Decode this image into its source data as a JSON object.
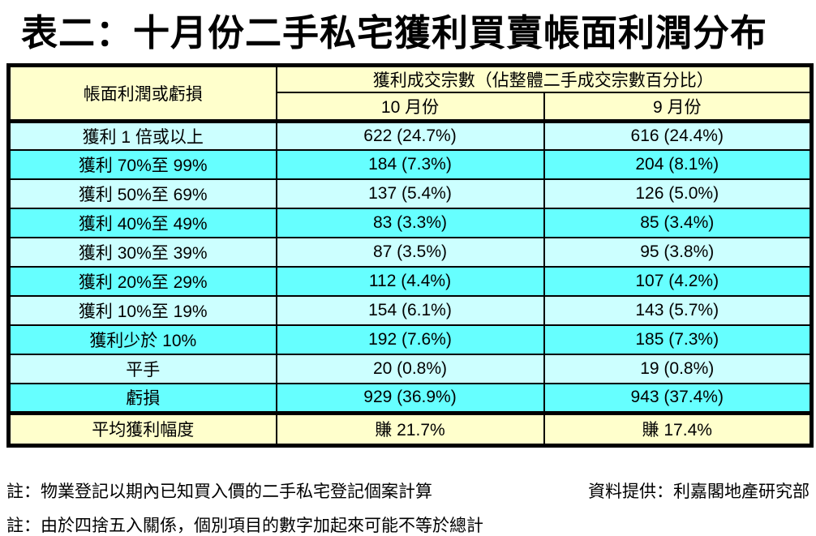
{
  "title": "表二：十月份二手私宅獲利買賣帳面利潤分布",
  "table": {
    "header": {
      "row_label_col": "帳面利潤或虧損",
      "group_label": "獲利成交宗數（佔整體二手成交宗數百分比）",
      "month_oct": "10 月份",
      "month_sep": "9 月份"
    },
    "rows": [
      {
        "label": "獲利 1 倍或以上",
        "oct": "622 (24.7%)",
        "sep": "616 (24.4%)"
      },
      {
        "label": "獲利 70%至 99%",
        "oct": "184 (7.3%)",
        "sep": "204 (8.1%)"
      },
      {
        "label": "獲利 50%至 69%",
        "oct": "137 (5.4%)",
        "sep": "126 (5.0%)"
      },
      {
        "label": "獲利 40%至 49%",
        "oct": "83 (3.3%)",
        "sep": "85 (3.4%)"
      },
      {
        "label": "獲利 30%至 39%",
        "oct": "87 (3.5%)",
        "sep": "95 (3.8%)"
      },
      {
        "label": "獲利 20%至 29%",
        "oct": "112 (4.4%)",
        "sep": "107 (4.2%)"
      },
      {
        "label": "獲利 10%至 19%",
        "oct": "154 (6.1%)",
        "sep": "143 (5.7%)"
      },
      {
        "label": "獲利少於 10%",
        "oct": "192 (7.6%)",
        "sep": "185 (7.3%)"
      },
      {
        "label": "平手",
        "oct": "20 (0.8%)",
        "sep": "19 (0.8%)"
      },
      {
        "label": "虧損",
        "oct": "929 (36.9%)",
        "sep": "943 (37.4%)"
      }
    ],
    "summary": {
      "label": "平均獲利幅度",
      "oct": "賺 21.7%",
      "sep": "賺 17.4%"
    }
  },
  "notes": {
    "note1": "註：物業登記以期內已知買入價的二手私宅登記個案計算",
    "source": "資料提供：利嘉閣地產研究部",
    "note2": "註：由於四捨五入關係，個別項目的數字加起來可能不等於總計"
  },
  "colors": {
    "header_bg": "#FFFFCC",
    "row_light_bg": "#CCFFFF",
    "row_bright_bg": "#66FFFF",
    "summary_bg": "#FFFFCC",
    "border": "#000000",
    "text": "#000000"
  },
  "chart_data": {
    "type": "table",
    "title": "表二：十月份二手私宅獲利買賣帳面利潤分布",
    "column_group": "獲利成交宗數（佔整體二手成交宗數百分比）",
    "columns": [
      "帳面利潤或虧損",
      "10 月份",
      "9 月份"
    ],
    "categories": [
      "獲利 1 倍或以上",
      "獲利 70%至 99%",
      "獲利 50%至 69%",
      "獲利 40%至 49%",
      "獲利 30%至 39%",
      "獲利 20%至 29%",
      "獲利 10%至 19%",
      "獲利少於 10%",
      "平手",
      "虧損"
    ],
    "series": [
      {
        "name": "10 月份 宗數",
        "values": [
          622,
          184,
          137,
          83,
          87,
          112,
          154,
          192,
          20,
          929
        ]
      },
      {
        "name": "10 月份 百分比",
        "values": [
          24.7,
          7.3,
          5.4,
          3.3,
          3.5,
          4.4,
          6.1,
          7.6,
          0.8,
          36.9
        ]
      },
      {
        "name": "9 月份 宗數",
        "values": [
          616,
          204,
          126,
          85,
          95,
          107,
          143,
          185,
          19,
          943
        ]
      },
      {
        "name": "9 月份 百分比",
        "values": [
          24.4,
          8.1,
          5.0,
          3.4,
          3.8,
          4.2,
          5.7,
          7.3,
          0.8,
          37.4
        ]
      }
    ],
    "summary_row": {
      "label": "平均獲利幅度",
      "oct": "賺 21.7%",
      "sep": "賺 17.4%"
    },
    "notes": [
      "註：物業登記以期內已知買入價的二手私宅登記個案計算",
      "註：由於四捨五入關係，個別項目的數字加起來可能不等於總計"
    ],
    "source": "資料提供：利嘉閣地產研究部"
  }
}
